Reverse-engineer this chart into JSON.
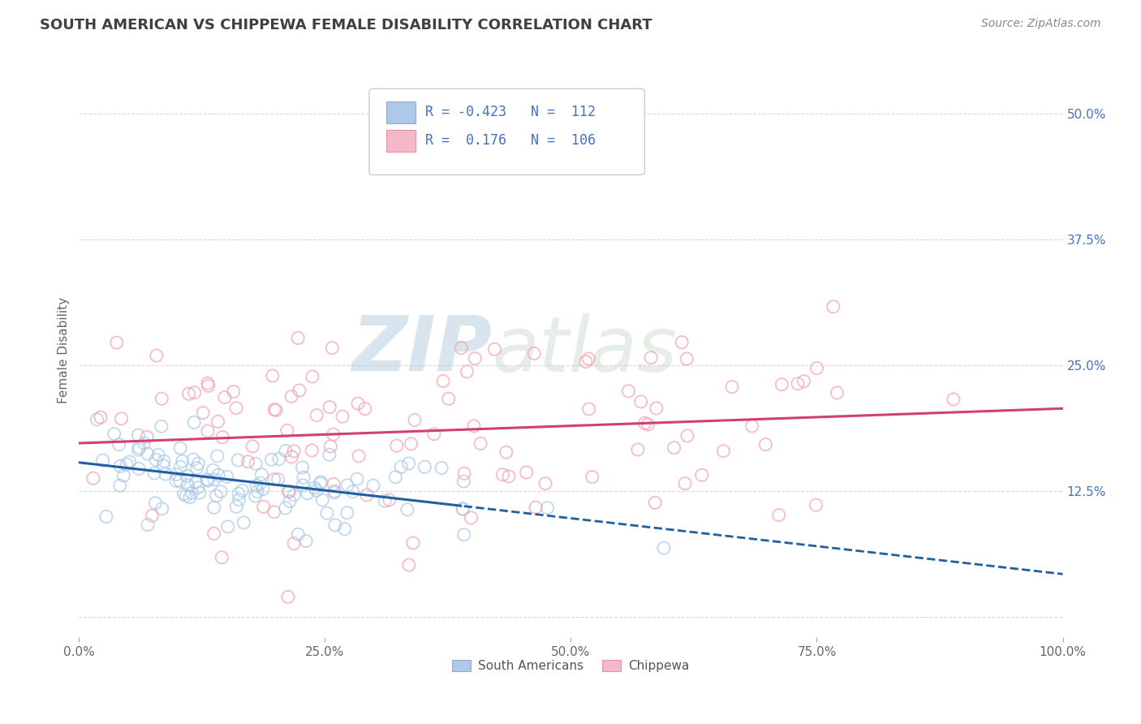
{
  "title": "SOUTH AMERICAN VS CHIPPEWA FEMALE DISABILITY CORRELATION CHART",
  "source": "Source: ZipAtlas.com",
  "ylabel": "Female Disability",
  "xlim": [
    0.0,
    1.0
  ],
  "ylim": [
    -0.02,
    0.55
  ],
  "xticks": [
    0.0,
    0.25,
    0.5,
    0.75,
    1.0
  ],
  "xticklabels": [
    "0.0%",
    "25.0%",
    "50.0%",
    "75.0%",
    "100.0%"
  ],
  "yticks": [
    0.0,
    0.125,
    0.25,
    0.375,
    0.5
  ],
  "yticklabels": [
    "",
    "12.5%",
    "25.0%",
    "37.5%",
    "50.0%"
  ],
  "R_blue": -0.423,
  "N_blue": 112,
  "R_pink": 0.176,
  "N_pink": 106,
  "blue_scatter_color": "#a8c8e8",
  "pink_scatter_color": "#f4a0b0",
  "blue_line_color": "#2060a0",
  "pink_line_color": "#d04070",
  "blue_legend_color": "#adc8e8",
  "pink_legend_color": "#f4b8c8",
  "grid_color": "#cccccc",
  "background_color": "#ffffff",
  "title_color": "#404040",
  "legend_text_color": "#4472c4",
  "watermark_zip": "ZIP",
  "watermark_atlas": "atlas",
  "seed": 42
}
